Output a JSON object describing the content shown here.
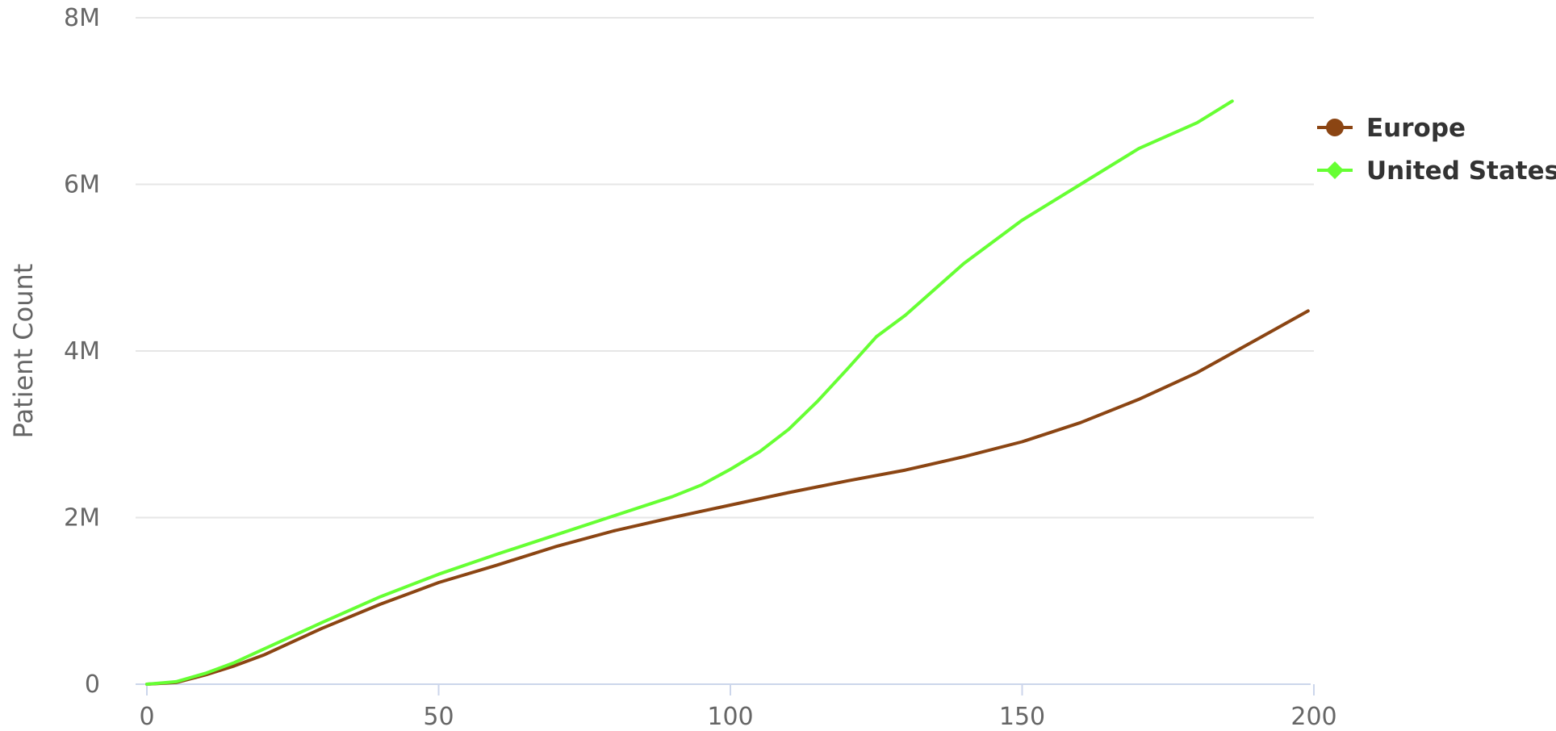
{
  "chart_data": {
    "type": "line",
    "title": "",
    "xlabel": "",
    "ylabel": "Patient Count",
    "xlim": [
      0,
      200
    ],
    "ylim": [
      0,
      8000000
    ],
    "x_ticks": [
      0,
      50,
      100,
      150,
      200
    ],
    "x_tick_labels": [
      "0",
      "50",
      "100",
      "150",
      "200"
    ],
    "y_ticks": [
      0,
      2000000,
      4000000,
      6000000,
      8000000
    ],
    "y_tick_labels": [
      "0",
      "2M",
      "4M",
      "6M",
      "8M"
    ],
    "grid": true,
    "legend_position": "right",
    "series": [
      {
        "name": "Europe",
        "color": "#8B4513",
        "marker": "circle",
        "x": [
          0,
          5,
          10,
          15,
          20,
          25,
          30,
          40,
          50,
          60,
          70,
          80,
          90,
          100,
          110,
          120,
          130,
          140,
          150,
          160,
          170,
          180,
          190,
          199
        ],
        "y": [
          0,
          20000,
          110000,
          220000,
          350000,
          510000,
          670000,
          960000,
          1220000,
          1430000,
          1650000,
          1840000,
          2000000,
          2150000,
          2300000,
          2440000,
          2570000,
          2730000,
          2910000,
          3140000,
          3420000,
          3740000,
          4130000,
          4480000
        ]
      },
      {
        "name": "United States",
        "color": "#66FF33",
        "marker": "diamond",
        "x": [
          0,
          5,
          10,
          15,
          20,
          25,
          30,
          40,
          50,
          60,
          70,
          80,
          90,
          95,
          100,
          105,
          110,
          115,
          120,
          125,
          130,
          140,
          150,
          160,
          170,
          180,
          186
        ],
        "y": [
          0,
          30000,
          130000,
          260000,
          420000,
          580000,
          740000,
          1050000,
          1320000,
          1560000,
          1790000,
          2020000,
          2250000,
          2390000,
          2580000,
          2790000,
          3060000,
          3400000,
          3780000,
          4170000,
          4430000,
          5050000,
          5570000,
          6000000,
          6430000,
          6740000,
          7000000
        ]
      }
    ]
  }
}
